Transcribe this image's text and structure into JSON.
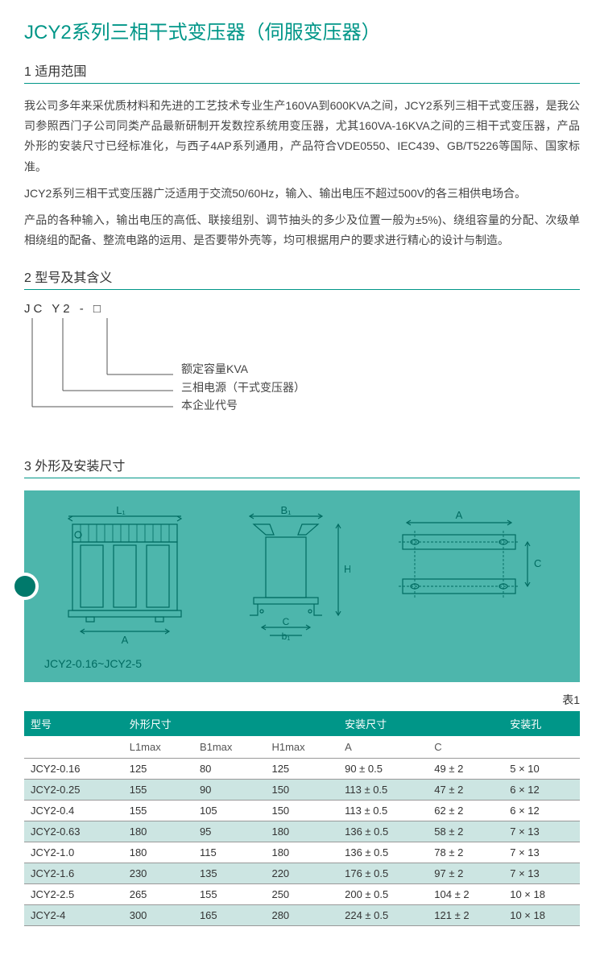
{
  "title": "JCY2系列三相干式变压器（伺服变压器）",
  "sections": {
    "s1": {
      "header": "1 适用范围"
    },
    "s2": {
      "header": "2 型号及其含义"
    },
    "s3": {
      "header": "3 外形及安装尺寸"
    }
  },
  "body": {
    "p1": "我公司多年来采优质材料和先进的工艺技术专业生产160VA到600KVA之间，JCY2系列三相干式变压器，是我公司参照西门子公司同类产品最新研制开发数控系统用变压器，尤其160VA-16KVA之间的三相干式变压器，产品外形的安装尺寸已经标准化，与西子4AP系列通用，产品符合VDE0550、IEC439、GB/T5226等国际、国家标准。",
    "p2": "JCY2系列三相干式变压器广泛适用于交流50/60Hz，输入、输出电压不超过500V的各三相供电场合。",
    "p3": "产品的各种输入，输出电压的高低、联接组别、调节抽头的多少及位置一般为±5%)、绕组容量的分配、次级单相绕组的配备、整流电路的运用、是否要带外壳等，均可根据用户的要求进行精心的设计与制造。"
  },
  "model": {
    "code": "JC  Y2  -  □",
    "line1": "额定容量KVA",
    "line2": "三相电源（干式变压器）",
    "line3": "本企业代号"
  },
  "diagram": {
    "caption": "JCY2-0.16~JCY2-5",
    "labels": {
      "L1": "L₁",
      "A": "A",
      "B1": "B₁",
      "H1": "H₁",
      "C": "C",
      "b1": "b₁"
    },
    "colors": {
      "bg": "#4db6ac",
      "stroke": "#006b61",
      "text": "#006b61"
    }
  },
  "table": {
    "label": "表1",
    "head": {
      "c1": "型号",
      "c2": "外形尺寸",
      "c3": "安装尺寸",
      "c4": "安装孔",
      "sub": {
        "l1": "L1max",
        "b1": "B1max",
        "h1": "H1max",
        "a": "A",
        "c": "C"
      }
    },
    "rows": [
      {
        "m": "JCY2-0.16",
        "l": "125",
        "b": "80",
        "h": "125",
        "a": "90 ± 0.5",
        "c": "49 ± 2",
        "hole": "5 × 10",
        "shade": false
      },
      {
        "m": "JCY2-0.25",
        "l": "155",
        "b": "90",
        "h": "150",
        "a": "113 ± 0.5",
        "c": "47 ± 2",
        "hole": "6 × 12",
        "shade": true
      },
      {
        "m": "JCY2-0.4",
        "l": "155",
        "b": "105",
        "h": "150",
        "a": "113 ± 0.5",
        "c": "62 ± 2",
        "hole": "6 × 12",
        "shade": false
      },
      {
        "m": "JCY2-0.63",
        "l": "180",
        "b": "95",
        "h": "180",
        "a": "136 ± 0.5",
        "c": "58 ± 2",
        "hole": "7 × 13",
        "shade": true
      },
      {
        "m": "JCY2-1.0",
        "l": "180",
        "b": "115",
        "h": "180",
        "a": "136 ± 0.5",
        "c": "78 ± 2",
        "hole": "7 × 13",
        "shade": false
      },
      {
        "m": "JCY2-1.6",
        "l": "230",
        "b": "135",
        "h": "220",
        "a": "176 ± 0.5",
        "c": "97 ± 2",
        "hole": "7 × 13",
        "shade": true
      },
      {
        "m": "JCY2-2.5",
        "l": "265",
        "b": "155",
        "h": "250",
        "a": "200 ± 0.5",
        "c": "104 ± 2",
        "hole": "10 × 18",
        "shade": false
      },
      {
        "m": "JCY2-4",
        "l": "300",
        "b": "165",
        "h": "280",
        "a": "224 ± 0.5",
        "c": "121 ± 2",
        "hole": "10 × 18",
        "shade": true
      }
    ]
  }
}
